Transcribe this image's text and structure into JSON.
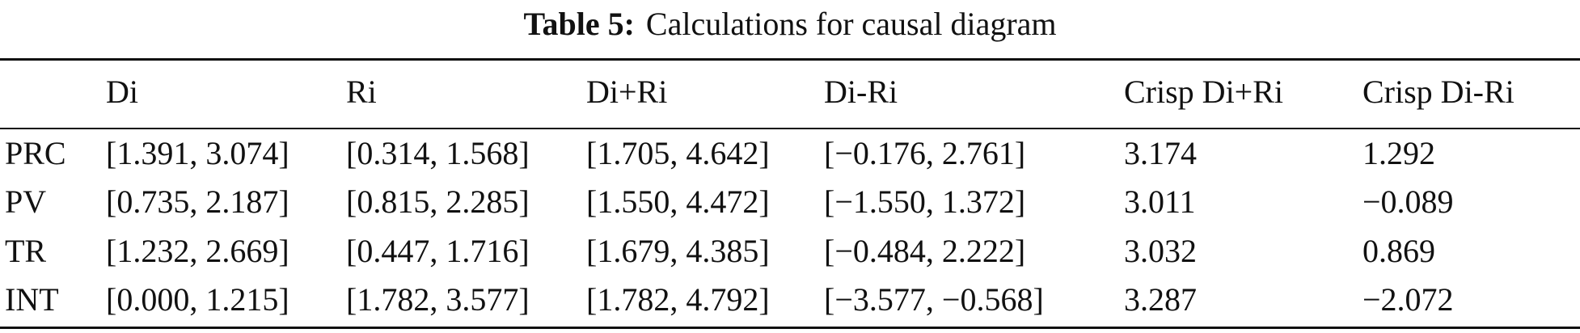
{
  "title": {
    "label": "Table 5:",
    "text": "Calculations for causal diagram"
  },
  "table": {
    "header": [
      "Di",
      "Ri",
      "Di+Ri",
      "Di-Ri",
      "Crisp Di+Ri",
      "Crisp Di-Ri"
    ],
    "rows": [
      [
        "PRC",
        "[1.391, 3.074]",
        "[0.314, 1.568]",
        "[1.705, 4.642]",
        "[−0.176, 2.761]",
        "3.174",
        "1.292"
      ],
      [
        "PV",
        "[0.735, 2.187]",
        "[0.815, 2.285]",
        "[1.550, 4.472]",
        "[−1.550, 1.372]",
        "3.011",
        "−0.089"
      ],
      [
        "TR",
        "[1.232, 2.669]",
        "[0.447, 1.716]",
        "[1.679, 4.385]",
        "[−0.484, 2.222]",
        "3.032",
        "0.869"
      ],
      [
        "INT",
        "[0.000, 1.215]",
        "[1.782, 3.577]",
        "[1.782, 4.792]",
        "[−3.577, −0.568]",
        "3.287",
        "−2.072"
      ]
    ]
  }
}
